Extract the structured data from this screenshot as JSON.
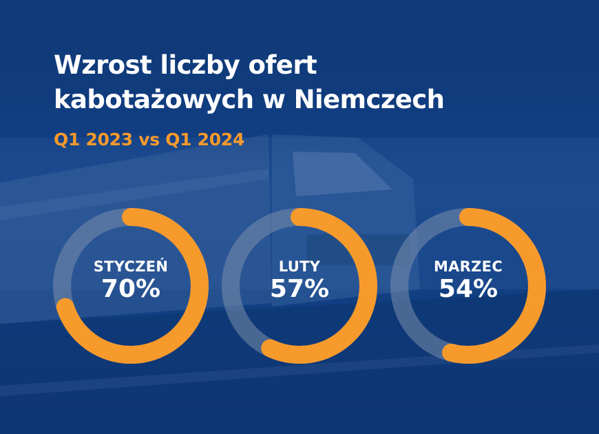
{
  "header": {
    "title_line1": "Wzrost liczby ofert",
    "title_line2": "kabotażowych w Niemczech",
    "subtitle": "Q1 2023 vs Q1 2024"
  },
  "colors": {
    "background": "#134289",
    "accent": "#f79a2c",
    "track": "#7a8eab",
    "text": "#ffffff"
  },
  "chart_data": {
    "type": "pie",
    "title": "Wzrost liczby ofert kabotażowych w Niemczech",
    "subtitle": "Q1 2023 vs Q1 2024",
    "categories": [
      "STYCZEŃ",
      "LUTY",
      "MARZEC"
    ],
    "values": [
      70,
      57,
      54
    ],
    "labels": [
      "70%",
      "57%",
      "54%"
    ],
    "unit": "%"
  }
}
